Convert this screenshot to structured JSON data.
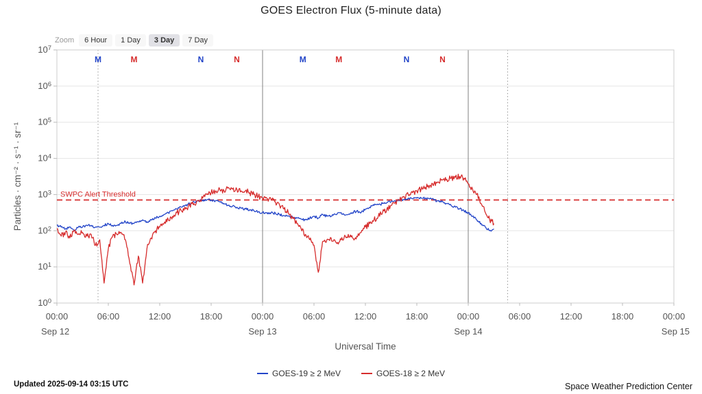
{
  "chart_data": {
    "type": "line",
    "title": "GOES Electron Flux (5-minute data)",
    "xlabel": "Universal Time",
    "ylabel": "Particles · cm⁻² · s⁻¹ · sr⁻¹",
    "x_axis": {
      "start": "Sep 12 00:00 UTC",
      "end": "Sep 15 00:00 UTC",
      "span_hours": 72,
      "tick_interval_hours": 6,
      "tick_labels": [
        "00:00",
        "06:00",
        "12:00",
        "18:00",
        "00:00",
        "06:00",
        "12:00",
        "18:00",
        "00:00",
        "06:00",
        "12:00",
        "18:00",
        "00:00"
      ],
      "date_labels": [
        {
          "hour": 0,
          "label": "Sep 12"
        },
        {
          "hour": 24,
          "label": "Sep 13"
        },
        {
          "hour": 48,
          "label": "Sep 14"
        },
        {
          "hour": 72,
          "label": "Sep 15"
        }
      ],
      "day_boundary_hours": [
        24,
        48
      ],
      "dotted_gridline_hours": [
        4.8,
        52.6
      ]
    },
    "y_axis": {
      "scale": "log10",
      "min_exponent": 0,
      "max_exponent": 7,
      "tick_exponents": [
        0,
        1,
        2,
        3,
        4,
        5,
        6,
        7
      ],
      "grid": true
    },
    "threshold": {
      "label": "SWPC Alert Threshold",
      "log10_value": 2.85,
      "color": "#d62c2c"
    },
    "satellite_markers": [
      {
        "hour": 4.8,
        "label": "M",
        "satellite": "GOES-19",
        "color": "#2244c8"
      },
      {
        "hour": 9.0,
        "label": "M",
        "satellite": "GOES-18",
        "color": "#d62c2c"
      },
      {
        "hour": 16.8,
        "label": "N",
        "satellite": "GOES-19",
        "color": "#2244c8"
      },
      {
        "hour": 21.0,
        "label": "N",
        "satellite": "GOES-18",
        "color": "#d62c2c"
      },
      {
        "hour": 28.7,
        "label": "M",
        "satellite": "GOES-19",
        "color": "#2244c8"
      },
      {
        "hour": 32.9,
        "label": "M",
        "satellite": "GOES-18",
        "color": "#d62c2c"
      },
      {
        "hour": 40.8,
        "label": "N",
        "satellite": "GOES-19",
        "color": "#2244c8"
      },
      {
        "hour": 45.0,
        "label": "N",
        "satellite": "GOES-18",
        "color": "#d62c2c"
      }
    ],
    "series": [
      {
        "id": "goes19",
        "name": "GOES-19 ≥ 2 MeV",
        "color": "#2244c8",
        "start_hour": 0,
        "step_hours": 0.5,
        "visual_noise": 0.035,
        "log10_values": [
          2.15,
          2.1,
          2.05,
          2.1,
          2.0,
          2.1,
          2.1,
          2.15,
          2.15,
          2.1,
          2.1,
          2.15,
          2.2,
          2.15,
          2.15,
          2.2,
          2.25,
          2.2,
          2.2,
          2.25,
          2.3,
          2.25,
          2.3,
          2.35,
          2.4,
          2.45,
          2.5,
          2.55,
          2.6,
          2.65,
          2.7,
          2.75,
          2.8,
          2.82,
          2.85,
          2.85,
          2.85,
          2.83,
          2.8,
          2.75,
          2.7,
          2.68,
          2.65,
          2.62,
          2.6,
          2.58,
          2.55,
          2.52,
          2.5,
          2.5,
          2.5,
          2.48,
          2.45,
          2.42,
          2.4,
          2.38,
          2.35,
          2.32,
          2.3,
          2.35,
          2.4,
          2.35,
          2.45,
          2.4,
          2.4,
          2.45,
          2.5,
          2.45,
          2.45,
          2.5,
          2.55,
          2.5,
          2.6,
          2.65,
          2.7,
          2.72,
          2.75,
          2.78,
          2.8,
          2.82,
          2.85,
          2.87,
          2.9,
          2.88,
          2.9,
          2.9,
          2.9,
          2.88,
          2.85,
          2.82,
          2.8,
          2.75,
          2.7,
          2.65,
          2.6,
          2.55,
          2.5,
          2.4,
          2.3,
          2.2,
          2.1,
          2.0,
          2.05
        ]
      },
      {
        "id": "goes18",
        "name": "GOES-18 ≥ 2 MeV",
        "color": "#d62c2c",
        "start_hour": 0,
        "step_hours": 0.5,
        "visual_noise": 0.08,
        "log10_values": [
          2.05,
          1.85,
          1.95,
          1.8,
          2.0,
          1.9,
          1.95,
          1.85,
          1.9,
          1.6,
          1.75,
          0.55,
          1.5,
          1.85,
          1.9,
          1.95,
          1.75,
          1.1,
          0.5,
          1.3,
          0.55,
          1.5,
          1.8,
          2.0,
          2.1,
          2.2,
          2.3,
          2.4,
          2.5,
          2.55,
          2.6,
          2.7,
          2.75,
          2.85,
          2.9,
          3.0,
          3.05,
          3.1,
          3.15,
          3.1,
          3.2,
          3.15,
          3.15,
          3.1,
          3.1,
          3.05,
          3.0,
          2.95,
          2.9,
          2.9,
          2.85,
          2.8,
          2.7,
          2.6,
          2.5,
          2.35,
          2.2,
          2.05,
          1.9,
          1.75,
          1.6,
          0.85,
          1.7,
          1.75,
          1.8,
          1.7,
          1.7,
          1.8,
          1.9,
          1.8,
          1.85,
          1.95,
          2.1,
          2.2,
          2.3,
          2.4,
          2.5,
          2.6,
          2.7,
          2.8,
          2.85,
          2.95,
          3.0,
          3.05,
          3.1,
          3.15,
          3.2,
          3.25,
          3.3,
          3.35,
          3.4,
          3.42,
          3.45,
          3.48,
          3.5,
          3.45,
          3.3,
          3.15,
          3.0,
          2.75,
          2.5,
          2.3,
          2.2
        ]
      }
    ]
  },
  "zoom": {
    "label": "Zoom",
    "options": [
      "6 Hour",
      "1 Day",
      "3 Day",
      "7 Day"
    ],
    "active": "3 Day"
  },
  "footer": {
    "updated": "Updated 2025-09-14 03:15 UTC",
    "credit": "Space Weather Prediction Center"
  }
}
